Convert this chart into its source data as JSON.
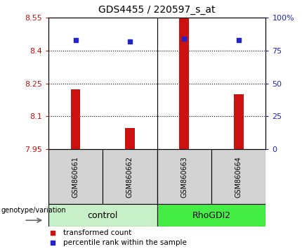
{
  "title": "GDS4455 / 220597_s_at",
  "samples": [
    "GSM860661",
    "GSM860662",
    "GSM860663",
    "GSM860664"
  ],
  "group_labels": [
    "control",
    "RhoGDI2"
  ],
  "group_colors": [
    "#c8f0c8",
    "#44ee44"
  ],
  "bar_values": [
    8.222,
    8.048,
    8.545,
    8.2
  ],
  "percentile_values": [
    83,
    82,
    84,
    83
  ],
  "y_min": 7.95,
  "y_max": 8.55,
  "y_ticks": [
    7.95,
    8.1,
    8.25,
    8.4,
    8.55
  ],
  "y_tick_labels": [
    "7.95",
    "8.1",
    "8.25",
    "8.4",
    "8.55"
  ],
  "right_y_ticks": [
    0,
    25,
    50,
    75,
    100
  ],
  "right_y_tick_labels": [
    "0",
    "25",
    "50",
    "75",
    "100%"
  ],
  "bar_color": "#cc1111",
  "dot_color": "#2222cc",
  "bar_width": 0.18,
  "bar_base": 7.95,
  "legend_items": [
    "transformed count",
    "percentile rank within the sample"
  ],
  "tick_label_fontsize": 8,
  "title_fontsize": 10,
  "sample_label_fontsize": 7,
  "group_label_fontsize": 9
}
